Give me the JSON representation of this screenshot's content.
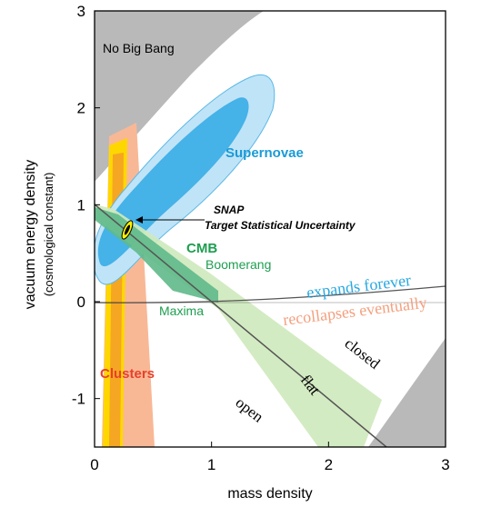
{
  "chart_data": {
    "type": "area",
    "title": "",
    "xlabel": "mass density",
    "ylabel": "vacuum energy density",
    "ylabel_sub": "(cosmological constant)",
    "xlim": [
      0,
      3
    ],
    "ylim": [
      -1.5,
      3
    ],
    "x_ticks": [
      0,
      1,
      2,
      3
    ],
    "y_ticks": [
      -1,
      0,
      1,
      2,
      3
    ],
    "grid": false,
    "regions": [
      {
        "name": "Supernovae",
        "label": "Supernovae",
        "color": "#1a9bd7"
      },
      {
        "name": "CMB",
        "label": "CMB",
        "color": "#1e9e50"
      },
      {
        "name": "Boomerang",
        "label": "Boomerang",
        "color": "#1e9e50"
      },
      {
        "name": "Maxima",
        "label": "Maxima",
        "color": "#1e9e50"
      },
      {
        "name": "Clusters",
        "label": "Clusters",
        "color": "#e8402a"
      },
      {
        "name": "No Big Bang",
        "label": "No Big Bang",
        "color": "#000000"
      }
    ],
    "curves": [
      {
        "name": "expands forever",
        "label": "expands forever",
        "color": "#29a9e0"
      },
      {
        "name": "recollapses eventually",
        "label": "recollapses eventually",
        "color": "#f4a07e"
      },
      {
        "name": "flat",
        "label": "flat",
        "color": "#000000",
        "points": [
          [
            0,
            1
          ],
          [
            2.5,
            -1.5
          ]
        ]
      },
      {
        "name": "closed",
        "label": "closed",
        "color": "#000000"
      },
      {
        "name": "open",
        "label": "open",
        "color": "#000000"
      }
    ],
    "annotations": [
      {
        "text": "SNAP",
        "color": "#000000"
      },
      {
        "text": "Target Statistical Uncertainty",
        "color": "#000000",
        "points_to": [
          0.28,
          0.82
        ]
      }
    ]
  }
}
